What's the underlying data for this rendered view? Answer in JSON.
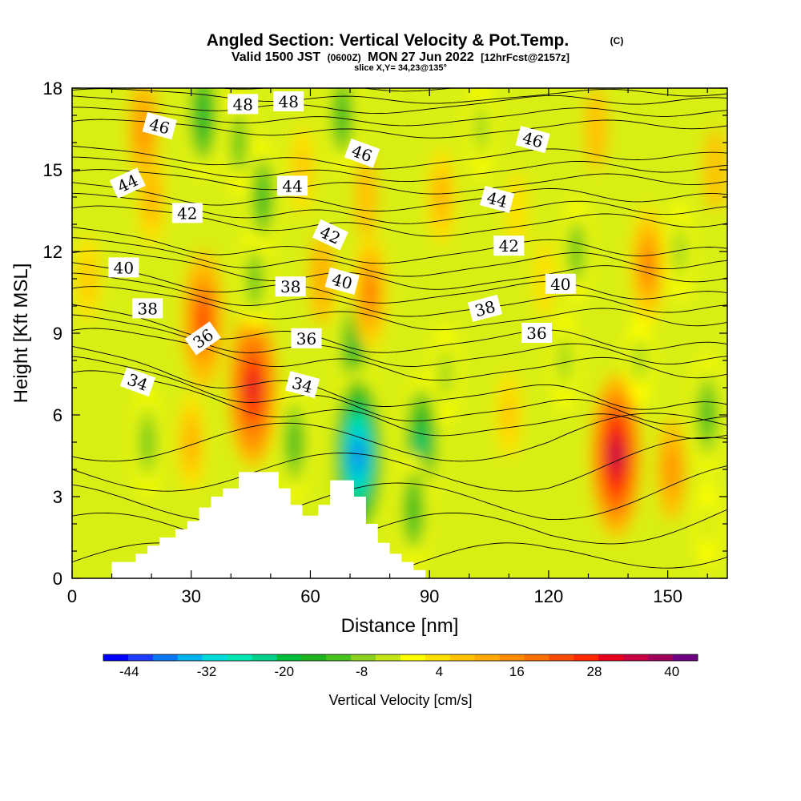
{
  "title": {
    "line1": "Angled Section: Vertical Velocity & Pot.Temp.",
    "copyright": "(C)",
    "line2_a": "Valid 1500 JST",
    "line2_b": "(0600Z)",
    "line2_c": "MON 27 Jun 2022",
    "line2_d": "[12hrFcst@2157z]",
    "line3": "slice X,Y= 34,23@135°"
  },
  "chart_data": {
    "type": "heatmap",
    "xlabel": "Distance [nm]",
    "ylabel": "Height [Kft MSL]",
    "xlim": [
      0,
      165
    ],
    "ylim": [
      0,
      18
    ],
    "x_ticks": [
      0,
      30,
      60,
      90,
      120,
      150
    ],
    "y_ticks": [
      0,
      3,
      6,
      9,
      12,
      15,
      18
    ],
    "colorbar": {
      "label": "Vertical Velocity [cm/s]",
      "tick_values": [
        -44,
        -32,
        -20,
        -8,
        4,
        16,
        28,
        40
      ],
      "range": [
        -48,
        44
      ],
      "colors": [
        "#0000ff",
        "#1e3cff",
        "#0a78f0",
        "#00b4f0",
        "#00dcdc",
        "#00e6b4",
        "#00d28c",
        "#00be3c",
        "#1eb41e",
        "#46c31e",
        "#8cd21e",
        "#c3e614",
        "#ffff00",
        "#ffe100",
        "#ffc300",
        "#ffaa00",
        "#ff8c00",
        "#ff6e00",
        "#ff4b00",
        "#ff2800",
        "#e6001e",
        "#c80041",
        "#a0005a",
        "#6e0082"
      ]
    },
    "vertical_velocity_centers": [
      {
        "x": 4,
        "y": 11,
        "value": 8
      },
      {
        "x": 20,
        "y": 14,
        "value": 12
      },
      {
        "x": 18,
        "y": 16.5,
        "value": 14
      },
      {
        "x": 33,
        "y": 9.5,
        "value": 28
      },
      {
        "x": 30,
        "y": 5,
        "value": 12
      },
      {
        "x": 45.5,
        "y": 7,
        "value": 36
      },
      {
        "x": 19,
        "y": 5,
        "value": -12
      },
      {
        "x": 33,
        "y": 17,
        "value": -18
      },
      {
        "x": 46,
        "y": 11,
        "value": -10
      },
      {
        "x": 48,
        "y": 14,
        "value": -14
      },
      {
        "x": 42,
        "y": 16,
        "value": -10
      },
      {
        "x": 56,
        "y": 5,
        "value": -16
      },
      {
        "x": 58,
        "y": 15,
        "value": 8
      },
      {
        "x": 63,
        "y": 11,
        "value": 10
      },
      {
        "x": 68,
        "y": 17,
        "value": -14
      },
      {
        "x": 71,
        "y": 8.5,
        "value": -20
      },
      {
        "x": 72,
        "y": 4.5,
        "value": -42
      },
      {
        "x": 75,
        "y": 10.5,
        "value": 20
      },
      {
        "x": 74,
        "y": 14,
        "value": 6
      },
      {
        "x": 88,
        "y": 5,
        "value": -22
      },
      {
        "x": 86,
        "y": 2.5,
        "value": -14
      },
      {
        "x": 93,
        "y": 14,
        "value": 12
      },
      {
        "x": 94,
        "y": 7.5,
        "value": -8
      },
      {
        "x": 103,
        "y": 16.5,
        "value": -8
      },
      {
        "x": 110,
        "y": 6,
        "value": 8
      },
      {
        "x": 112,
        "y": 13.5,
        "value": 4
      },
      {
        "x": 119,
        "y": 11,
        "value": 4
      },
      {
        "x": 124,
        "y": 8,
        "value": -8
      },
      {
        "x": 127,
        "y": 12,
        "value": -10
      },
      {
        "x": 132,
        "y": 16.5,
        "value": 6
      },
      {
        "x": 137,
        "y": 4.5,
        "value": 38
      },
      {
        "x": 145,
        "y": 11.5,
        "value": 20
      },
      {
        "x": 143,
        "y": 8,
        "value": -6
      },
      {
        "x": 151,
        "y": 4,
        "value": 14
      },
      {
        "x": 153,
        "y": 12,
        "value": -8
      },
      {
        "x": 160,
        "y": 6,
        "value": -16
      },
      {
        "x": 162,
        "y": 15,
        "value": 6
      },
      {
        "x": 160,
        "y": 2,
        "value": -4
      }
    ],
    "terrain": [
      [
        0,
        0
      ],
      [
        10,
        0
      ],
      [
        10,
        0.6
      ],
      [
        16,
        0.6
      ],
      [
        16,
        0.9
      ],
      [
        19,
        0.9
      ],
      [
        19,
        1.2
      ],
      [
        22,
        1.2
      ],
      [
        22,
        1.5
      ],
      [
        26,
        1.5
      ],
      [
        26,
        1.8
      ],
      [
        29,
        1.8
      ],
      [
        29,
        2.1
      ],
      [
        32,
        2.1
      ],
      [
        32,
        2.6
      ],
      [
        35,
        2.6
      ],
      [
        35,
        3.0
      ],
      [
        38,
        3.0
      ],
      [
        38,
        3.3
      ],
      [
        42,
        3.3
      ],
      [
        42,
        3.9
      ],
      [
        52,
        3.9
      ],
      [
        52,
        3.3
      ],
      [
        55,
        3.3
      ],
      [
        55,
        2.7
      ],
      [
        58,
        2.7
      ],
      [
        58,
        2.3
      ],
      [
        62,
        2.3
      ],
      [
        62,
        2.7
      ],
      [
        65,
        2.7
      ],
      [
        65,
        3.6
      ],
      [
        71,
        3.6
      ],
      [
        71,
        3.0
      ],
      [
        74,
        3.0
      ],
      [
        74,
        2.0
      ],
      [
        77,
        2.0
      ],
      [
        77,
        1.3
      ],
      [
        80,
        1.3
      ],
      [
        80,
        0.9
      ],
      [
        83,
        0.9
      ],
      [
        83,
        0.6
      ],
      [
        86,
        0.6
      ],
      [
        86,
        0.3
      ],
      [
        89,
        0.3
      ],
      [
        89,
        0
      ]
    ],
    "pot_temp_contours": [
      {
        "label": "34",
        "label_x": 16.5,
        "label_y": 7.2,
        "rot": 20,
        "y_base": 7.0,
        "amp": 0.5,
        "slope": -0.012
      },
      {
        "label": "36",
        "label_x": 33,
        "label_y": 8.8,
        "rot": -35,
        "y_base": 8.6,
        "amp": 0.45,
        "slope": -0.008
      },
      {
        "label": "38",
        "label_x": 19,
        "label_y": 9.9,
        "rot": 0,
        "y_base": 10.2,
        "amp": 0.4,
        "slope": -0.006
      },
      {
        "label": "40",
        "label_x": 13,
        "label_y": 11.4,
        "rot": 0,
        "y_base": 11.5,
        "amp": 0.4,
        "slope": -0.004
      },
      {
        "label": "42",
        "label_x": 29,
        "label_y": 13.4,
        "rot": 0,
        "y_base": 13.2,
        "amp": 0.35,
        "slope": -0.002
      },
      {
        "label": "44",
        "label_x": 14,
        "label_y": 14.5,
        "rot": -25,
        "y_base": 14.6,
        "amp": 0.3,
        "slope": -0.001
      },
      {
        "label": "46",
        "label_x": 22,
        "label_y": 16.6,
        "rot": 15,
        "y_base": 16.5,
        "amp": 0.25,
        "slope": 0
      },
      {
        "label": "48",
        "label_x": 43,
        "label_y": 17.4,
        "rot": 0,
        "y_base": 17.7,
        "amp": 0.2,
        "slope": 0
      },
      {
        "label": "48",
        "label_x": 54.5,
        "label_y": 17.5,
        "rot": 0,
        "y_base": null
      },
      {
        "label": "46",
        "label_x": 73,
        "label_y": 15.6,
        "rot": 20,
        "y_base": null
      },
      {
        "label": "44",
        "label_x": 55.5,
        "label_y": 14.4,
        "rot": 0,
        "y_base": null
      },
      {
        "label": "42",
        "label_x": 65,
        "label_y": 12.6,
        "rot": 25,
        "y_base": null
      },
      {
        "label": "40",
        "label_x": 68,
        "label_y": 10.9,
        "rot": 15,
        "y_base": null
      },
      {
        "label": "38",
        "label_x": 55,
        "label_y": 10.7,
        "rot": 0,
        "y_base": null
      },
      {
        "label": "36",
        "label_x": 59,
        "label_y": 8.8,
        "rot": 0,
        "y_base": null
      },
      {
        "label": "34",
        "label_x": 58,
        "label_y": 7.1,
        "rot": 15,
        "y_base": null
      },
      {
        "label": "38",
        "label_x": 104,
        "label_y": 9.9,
        "rot": -15,
        "y_base": null
      },
      {
        "label": "36",
        "label_x": 117,
        "label_y": 9.0,
        "rot": 0,
        "y_base": null
      },
      {
        "label": "40",
        "label_x": 123,
        "label_y": 10.8,
        "rot": 0,
        "y_base": null
      },
      {
        "label": "42",
        "label_x": 110,
        "label_y": 12.2,
        "rot": 0,
        "y_base": null
      },
      {
        "label": "44",
        "label_x": 107,
        "label_y": 13.9,
        "rot": 15,
        "y_base": null
      },
      {
        "label": "46",
        "label_x": 116,
        "label_y": 16.1,
        "rot": 15,
        "y_base": null
      }
    ]
  }
}
